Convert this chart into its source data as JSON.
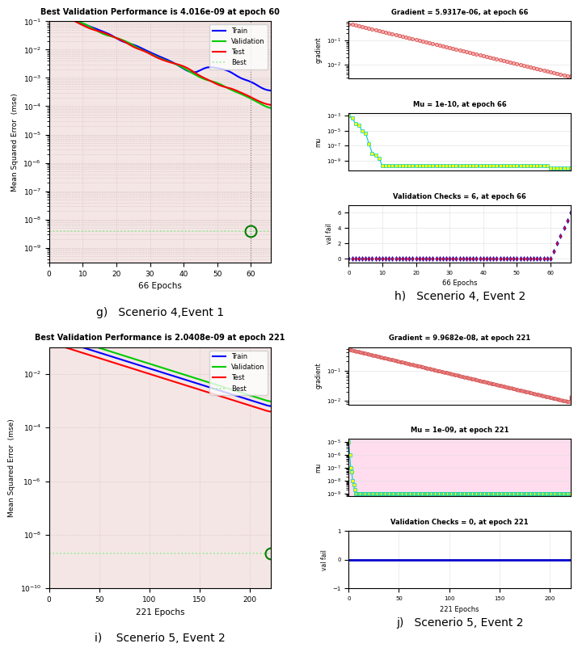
{
  "panel_g": {
    "title": "Best Validation Performance is 4.016e-09 at epoch 60",
    "xlabel": "66 Epochs",
    "ylabel": "Mean Squared Error  (mse)",
    "best_epoch": 60,
    "total_epochs": 66,
    "best_val": 4.016e-09,
    "ylim_low": 3e-10,
    "ylim_high": 0.1,
    "caption": "g)   Scenerio 4,Event 1"
  },
  "panel_h": {
    "title_grad": "Gradient = 5.9317e-06, at epoch 66",
    "title_mu": "Mu = 1e-10, at epoch 66",
    "title_val": "Validation Checks = 6, at epoch 66",
    "xlabel": "66 Epochs",
    "total_epochs": 66,
    "caption": "h)   Scenerio 4, Event 2"
  },
  "panel_i": {
    "title": "Best Validation Performance is 2.0408e-09 at epoch 221",
    "xlabel": "221 Epochs",
    "ylabel": "Mean Squared Error  (mse)",
    "best_epoch": 221,
    "total_epochs": 221,
    "best_val": 2.0408e-09,
    "ylim_low": 1e-10,
    "ylim_high": 0.1,
    "caption": "i)    Scenerio 5, Event 2"
  },
  "panel_j": {
    "title_grad": "Gradient = 9.9682e-08, at epoch 221",
    "title_mu": "Mu = 1e-09, at epoch 221",
    "title_val": "Validation Checks = 0, at epoch 221",
    "xlabel": "221 Epochs",
    "total_epochs": 221,
    "caption": "j)   Scenerio 5, Event 2"
  },
  "bg_color": "#f5e6e6",
  "train_color": "#0000ff",
  "val_color": "#00cc00",
  "test_color": "#ff0000",
  "best_color": "#90ee90",
  "gradient_color": "#cc4444",
  "gradient_marker_face": "#ffaaaa",
  "mu_color": "#00cccc",
  "mu_marker_face": "#ffff00",
  "val_fail_edge": "#0000cc",
  "val_fail_face": "#ff0000"
}
